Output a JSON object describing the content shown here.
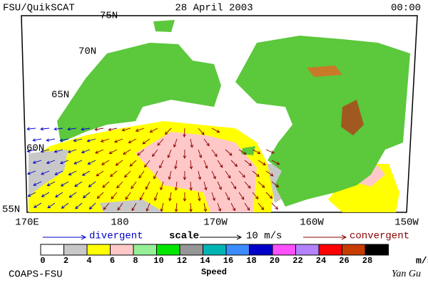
{
  "header": {
    "left": "FSU/QuikSCAT",
    "date": "28 April 2003",
    "time": "00:00"
  },
  "map": {
    "lat_labels": [
      "75N",
      "70N",
      "65N",
      "60N",
      "55N"
    ],
    "lon_labels": [
      "170E",
      "180",
      "170W",
      "160W",
      "150W"
    ]
  },
  "legend": {
    "divergent": "divergent",
    "scale": "scale",
    "scale_value": "10 m/s",
    "convergent": "convergent"
  },
  "colorbar": {
    "labels": [
      0,
      2,
      4,
      6,
      8,
      10,
      12,
      14,
      16,
      18,
      20,
      22,
      24,
      26,
      28
    ],
    "colors": [
      "#ffffff",
      "#c8c8c8",
      "#ffff00",
      "#ffc8c8",
      "#96f096",
      "#00e600",
      "#969696",
      "#00b4b4",
      "#3c8cff",
      "#0000c8",
      "#ff50ff",
      "#b482ff",
      "#ff0000",
      "#c83c00",
      "#000000"
    ],
    "unit": "m/s",
    "title": "Speed"
  },
  "footer": {
    "left": "COAPS-FSU",
    "right": "Yan Gu"
  }
}
